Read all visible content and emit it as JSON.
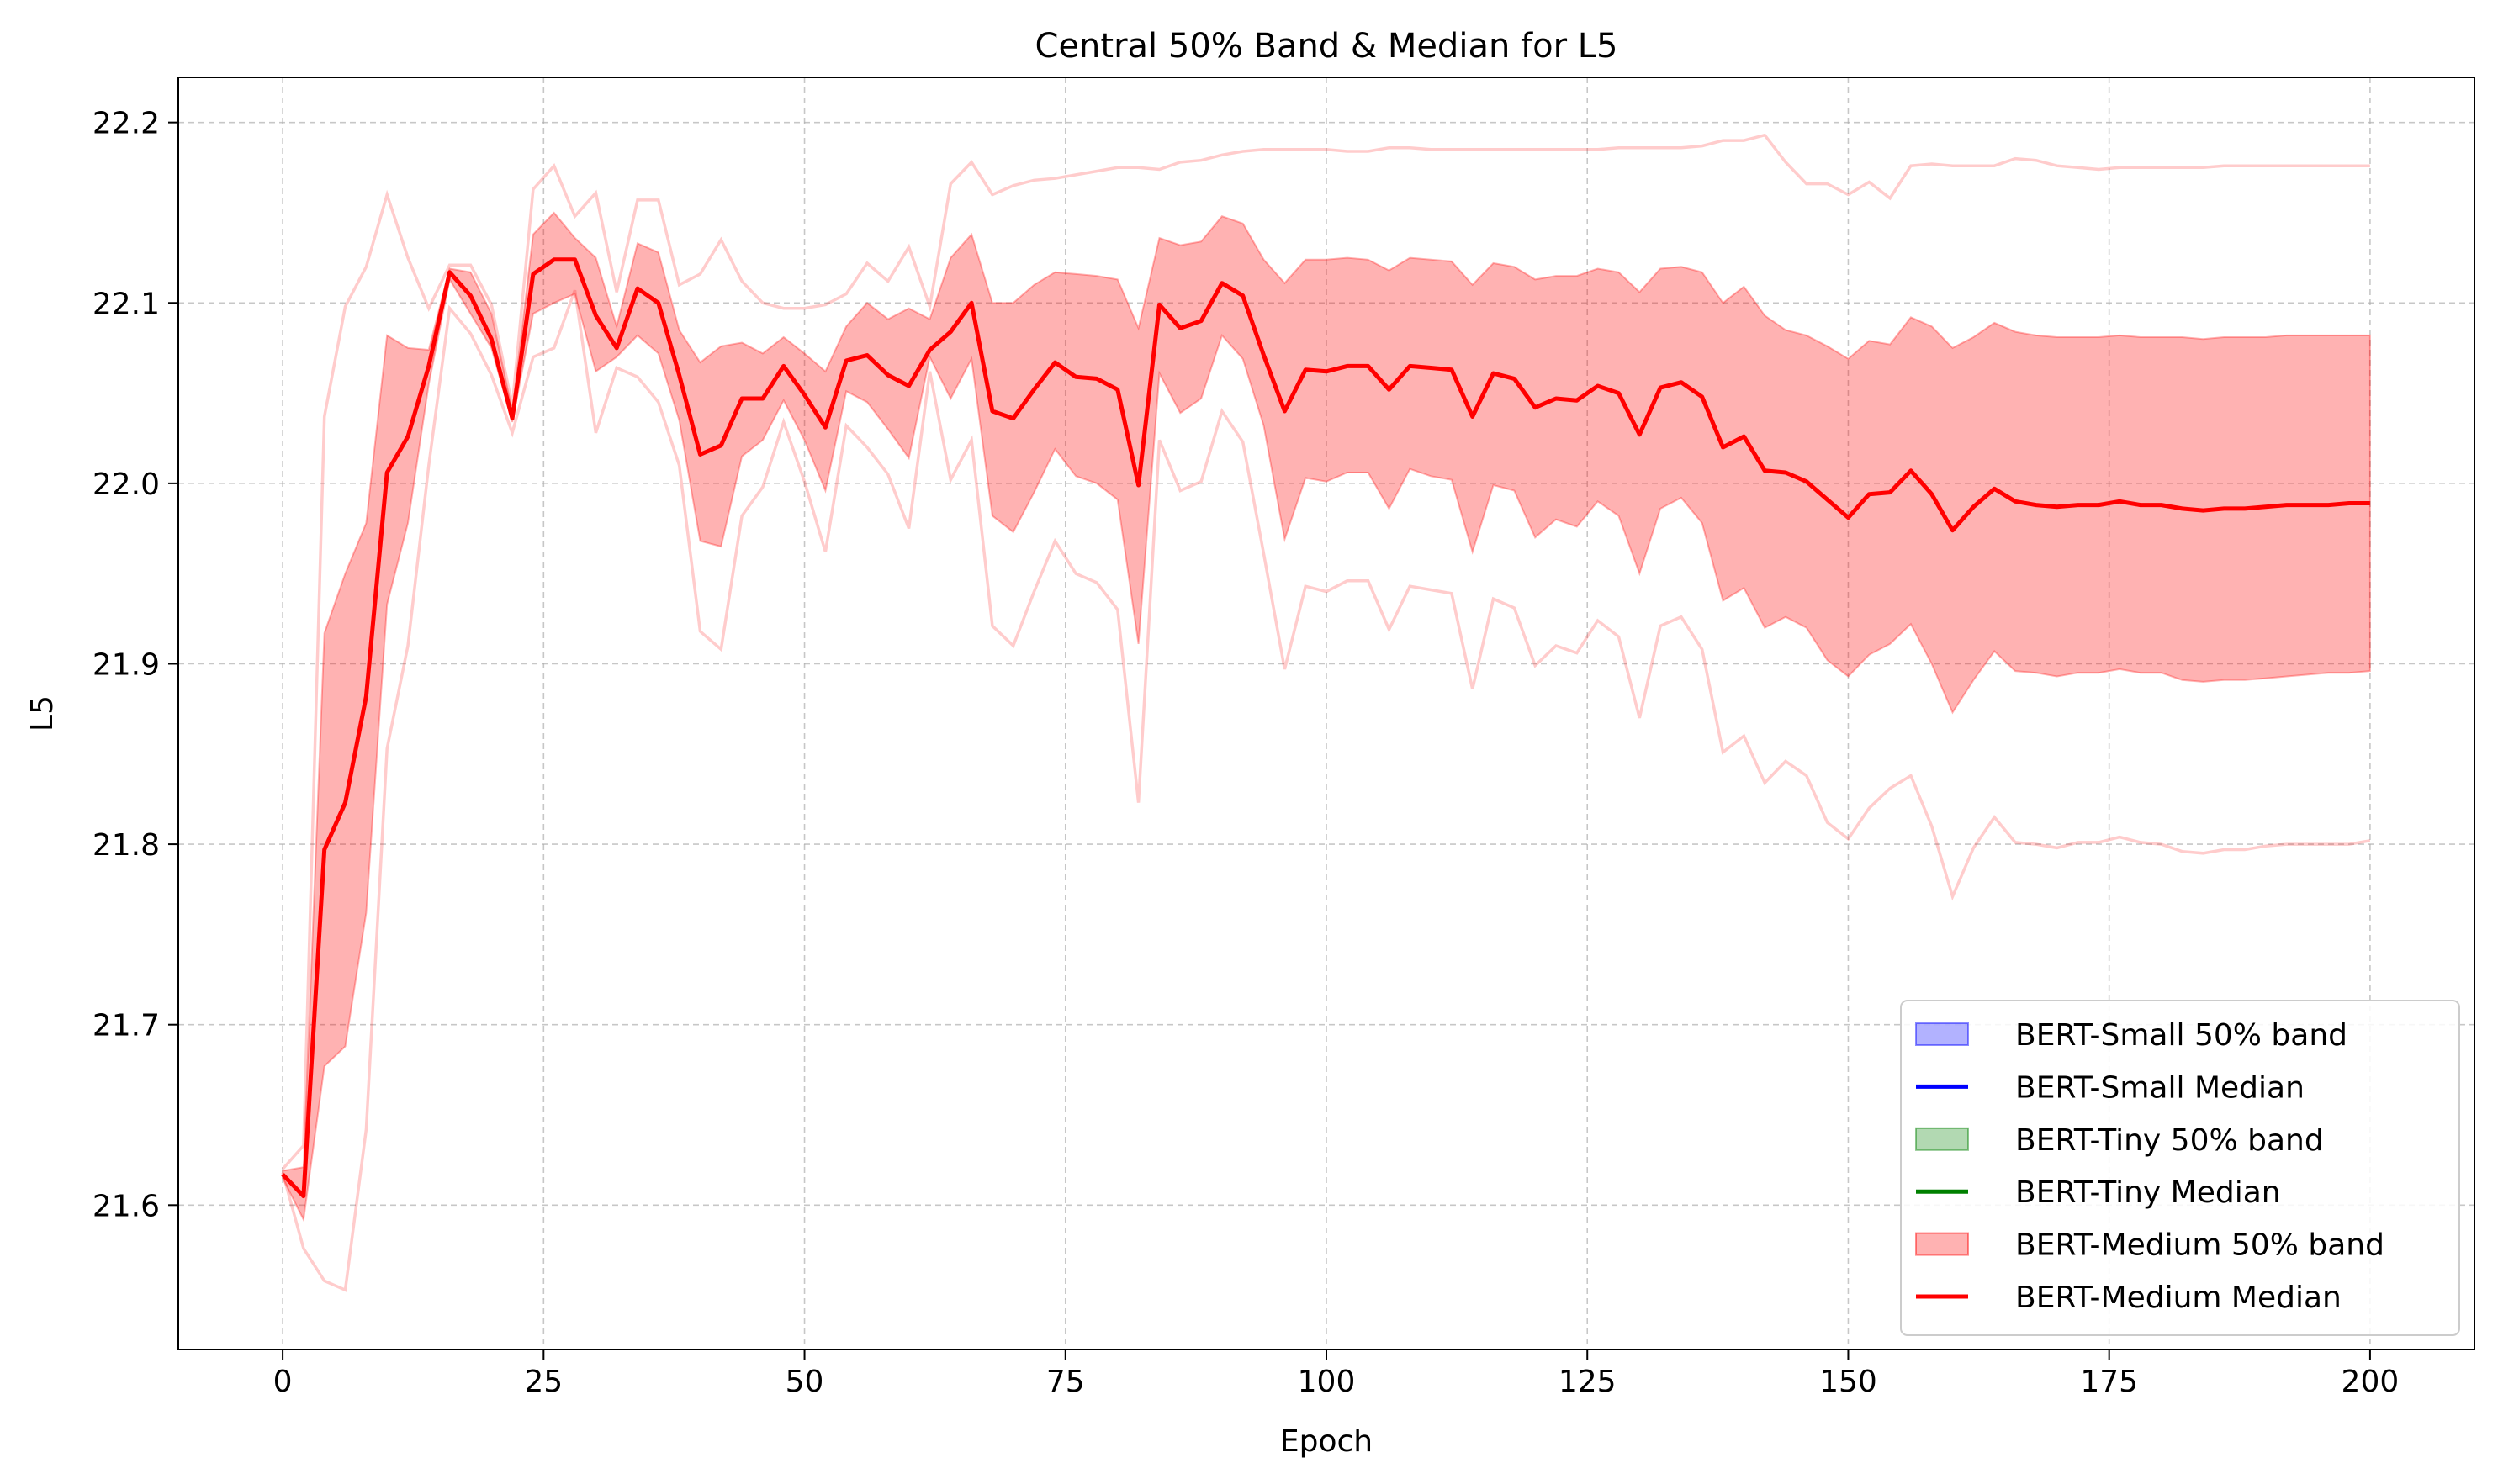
{
  "chart_data": {
    "type": "line",
    "title": "Central 50% Band & Median for L5",
    "xlabel": "Epoch",
    "ylabel": "L5",
    "xlim": [
      -10,
      210
    ],
    "ylim": [
      21.52,
      22.225
    ],
    "xticks": [
      0,
      25,
      50,
      75,
      100,
      125,
      150,
      175,
      200
    ],
    "xtick_labels": [
      "0",
      "25",
      "50",
      "75",
      "100",
      "125",
      "150",
      "175",
      "200"
    ],
    "yticks": [
      21.6,
      21.7,
      21.8,
      21.9,
      22.0,
      22.1,
      22.2
    ],
    "ytick_labels": [
      "21.6",
      "21.7",
      "21.8",
      "21.9",
      "22.0",
      "22.1",
      "22.2"
    ],
    "grid": true,
    "legend_position": "lower-right",
    "legend": [
      {
        "label": "BERT-Small 50% band",
        "kind": "band",
        "color": "#0000ff"
      },
      {
        "label": "BERT-Small Median",
        "kind": "line",
        "color": "#0000ff"
      },
      {
        "label": "BERT-Tiny 50% band",
        "kind": "band",
        "color": "#008000"
      },
      {
        "label": "BERT-Tiny Median",
        "kind": "line",
        "color": "#008000"
      },
      {
        "label": "BERT-Medium 50% band",
        "kind": "band",
        "color": "#ff0000"
      },
      {
        "label": "BERT-Medium Median",
        "kind": "line",
        "color": "#ff0000"
      }
    ],
    "series": [
      {
        "name": "BERT-Medium",
        "color": "#ff0000",
        "x": [
          0,
          2,
          4,
          6,
          8,
          10,
          12,
          14,
          16,
          18,
          20,
          22,
          24,
          26,
          28,
          30,
          32,
          34,
          36,
          38,
          40,
          42,
          44,
          46,
          48,
          50,
          52,
          54,
          56,
          58,
          60,
          62,
          64,
          66,
          68,
          70,
          72,
          74,
          76,
          78,
          80,
          82,
          84,
          86,
          88,
          90,
          92,
          94,
          96,
          98,
          100,
          102,
          104,
          106,
          108,
          110,
          112,
          114,
          116,
          118,
          120,
          122,
          124,
          126,
          128,
          130,
          132,
          134,
          136,
          138,
          140,
          142,
          144,
          146,
          148,
          150,
          152,
          154,
          156,
          158,
          160,
          162,
          164,
          166,
          168,
          170,
          172,
          174,
          176,
          178,
          180,
          182,
          184,
          186,
          188,
          190,
          192,
          194,
          196,
          198,
          200
        ],
        "median": [
          21.617,
          21.605,
          21.797,
          21.823,
          21.882,
          22.006,
          22.026,
          22.065,
          22.117,
          22.104,
          22.08,
          22.036,
          22.116,
          22.124,
          22.124,
          22.093,
          22.075,
          22.108,
          22.1,
          22.06,
          22.016,
          22.021,
          22.047,
          22.047,
          22.065,
          22.049,
          22.031,
          22.068,
          22.071,
          22.06,
          22.054,
          22.074,
          22.084,
          22.1,
          22.04,
          22.036,
          22.052,
          22.067,
          22.059,
          22.058,
          22.052,
          21.999,
          22.099,
          22.086,
          22.09,
          22.111,
          22.104,
          22.071,
          22.04,
          22.063,
          22.062,
          22.065,
          22.065,
          22.052,
          22.065,
          22.064,
          22.063,
          22.037,
          22.061,
          22.058,
          22.042,
          22.047,
          22.046,
          22.054,
          22.05,
          22.027,
          22.053,
          22.056,
          22.048,
          22.02,
          22.026,
          22.007,
          22.006,
          22.001,
          21.991,
          21.981,
          21.994,
          21.995,
          22.007,
          21.994,
          21.974,
          21.987,
          21.997,
          21.99,
          21.988,
          21.987,
          21.988,
          21.988,
          21.99,
          21.988,
          21.988,
          21.986,
          21.985,
          21.986,
          21.986,
          21.987,
          21.988,
          21.988,
          21.988,
          21.989,
          21.989
        ],
        "q25": [
          21.615,
          21.592,
          21.677,
          21.688,
          21.762,
          21.933,
          21.978,
          22.055,
          22.113,
          22.094,
          22.075,
          22.034,
          22.094,
          22.1,
          22.105,
          22.062,
          22.07,
          22.082,
          22.072,
          22.035,
          21.968,
          21.965,
          22.015,
          22.024,
          22.046,
          22.024,
          21.996,
          22.051,
          22.045,
          22.03,
          22.014,
          22.07,
          22.047,
          22.069,
          21.982,
          21.973,
          21.995,
          22.019,
          22.004,
          22.0,
          21.991,
          21.911,
          22.061,
          22.039,
          22.047,
          22.082,
          22.069,
          22.032,
          21.969,
          22.003,
          22.001,
          22.006,
          22.006,
          21.986,
          22.008,
          22.004,
          22.002,
          21.962,
          21.999,
          21.996,
          21.97,
          21.98,
          21.976,
          21.99,
          21.982,
          21.95,
          21.986,
          21.992,
          21.978,
          21.935,
          21.942,
          21.92,
          21.926,
          21.92,
          21.902,
          21.893,
          21.905,
          21.911,
          21.922,
          21.9,
          21.873,
          21.891,
          21.907,
          21.896,
          21.895,
          21.893,
          21.895,
          21.895,
          21.897,
          21.895,
          21.895,
          21.891,
          21.89,
          21.891,
          21.891,
          21.892,
          21.893,
          21.894,
          21.895,
          21.895,
          21.896
        ],
        "q75": [
          21.619,
          21.621,
          21.917,
          21.95,
          21.978,
          22.082,
          22.075,
          22.074,
          22.119,
          22.117,
          22.094,
          22.04,
          22.138,
          22.15,
          22.136,
          22.125,
          22.087,
          22.133,
          22.128,
          22.085,
          22.067,
          22.076,
          22.078,
          22.072,
          22.081,
          22.072,
          22.062,
          22.087,
          22.1,
          22.091,
          22.097,
          22.091,
          22.125,
          22.138,
          22.1,
          22.1,
          22.11,
          22.117,
          22.116,
          22.115,
          22.113,
          22.086,
          22.136,
          22.132,
          22.134,
          22.148,
          22.144,
          22.124,
          22.111,
          22.124,
          22.124,
          22.125,
          22.124,
          22.118,
          22.125,
          22.124,
          22.123,
          22.11,
          22.122,
          22.12,
          22.113,
          22.115,
          22.115,
          22.119,
          22.117,
          22.106,
          22.119,
          22.12,
          22.117,
          22.1,
          22.109,
          22.093,
          22.085,
          22.082,
          22.076,
          22.069,
          22.079,
          22.077,
          22.092,
          22.087,
          22.075,
          22.081,
          22.089,
          22.084,
          22.082,
          22.081,
          22.081,
          22.081,
          22.082,
          22.081,
          22.081,
          22.081,
          22.08,
          22.081,
          22.081,
          22.081,
          22.082,
          22.082,
          22.082,
          22.082,
          22.082
        ],
        "min": [
          21.618,
          21.576,
          21.558,
          21.553,
          21.642,
          21.853,
          21.91,
          22.01,
          22.097,
          22.083,
          22.06,
          22.028,
          22.07,
          22.075,
          22.107,
          22.028,
          22.064,
          22.059,
          22.045,
          22.01,
          21.918,
          21.908,
          21.982,
          21.998,
          22.034,
          22.001,
          21.962,
          22.032,
          22.02,
          22.005,
          21.975,
          22.062,
          22.002,
          22.024,
          21.921,
          21.91,
          21.94,
          21.968,
          21.95,
          21.945,
          21.93,
          21.823,
          22.024,
          21.996,
          22.001,
          22.04,
          22.023,
          21.961,
          21.897,
          21.943,
          21.94,
          21.946,
          21.946,
          21.919,
          21.943,
          21.941,
          21.939,
          21.886,
          21.936,
          21.931,
          21.899,
          21.91,
          21.906,
          21.924,
          21.915,
          21.87,
          21.921,
          21.926,
          21.908,
          21.851,
          21.86,
          21.834,
          21.846,
          21.838,
          21.812,
          21.803,
          21.82,
          21.831,
          21.838,
          21.81,
          21.771,
          21.798,
          21.815,
          21.801,
          21.8,
          21.798,
          21.801,
          21.801,
          21.804,
          21.801,
          21.8,
          21.796,
          21.795,
          21.797,
          21.797,
          21.799,
          21.8,
          21.8,
          21.8,
          21.8,
          21.802
        ],
        "max": [
          21.62,
          21.633,
          22.037,
          22.098,
          22.12,
          22.16,
          22.125,
          22.097,
          22.121,
          22.121,
          22.099,
          22.043,
          22.163,
          22.176,
          22.148,
          22.161,
          22.106,
          22.157,
          22.157,
          22.11,
          22.116,
          22.135,
          22.112,
          22.1,
          22.097,
          22.097,
          22.099,
          22.105,
          22.122,
          22.112,
          22.131,
          22.098,
          22.166,
          22.178,
          22.16,
          22.165,
          22.168,
          22.169,
          22.171,
          22.173,
          22.175,
          22.175,
          22.174,
          22.178,
          22.179,
          22.182,
          22.184,
          22.185,
          22.185,
          22.185,
          22.185,
          22.184,
          22.184,
          22.186,
          22.186,
          22.185,
          22.185,
          22.185,
          22.185,
          22.185,
          22.185,
          22.185,
          22.185,
          22.185,
          22.186,
          22.186,
          22.186,
          22.186,
          22.187,
          22.19,
          22.19,
          22.193,
          22.178,
          22.166,
          22.166,
          22.16,
          22.167,
          22.158,
          22.176,
          22.177,
          22.176,
          22.176,
          22.176,
          22.18,
          22.179,
          22.176,
          22.175,
          22.174,
          22.175,
          22.175,
          22.175,
          22.175,
          22.175,
          22.176,
          22.176,
          22.176,
          22.176,
          22.176,
          22.176,
          22.176,
          22.176
        ]
      }
    ]
  }
}
